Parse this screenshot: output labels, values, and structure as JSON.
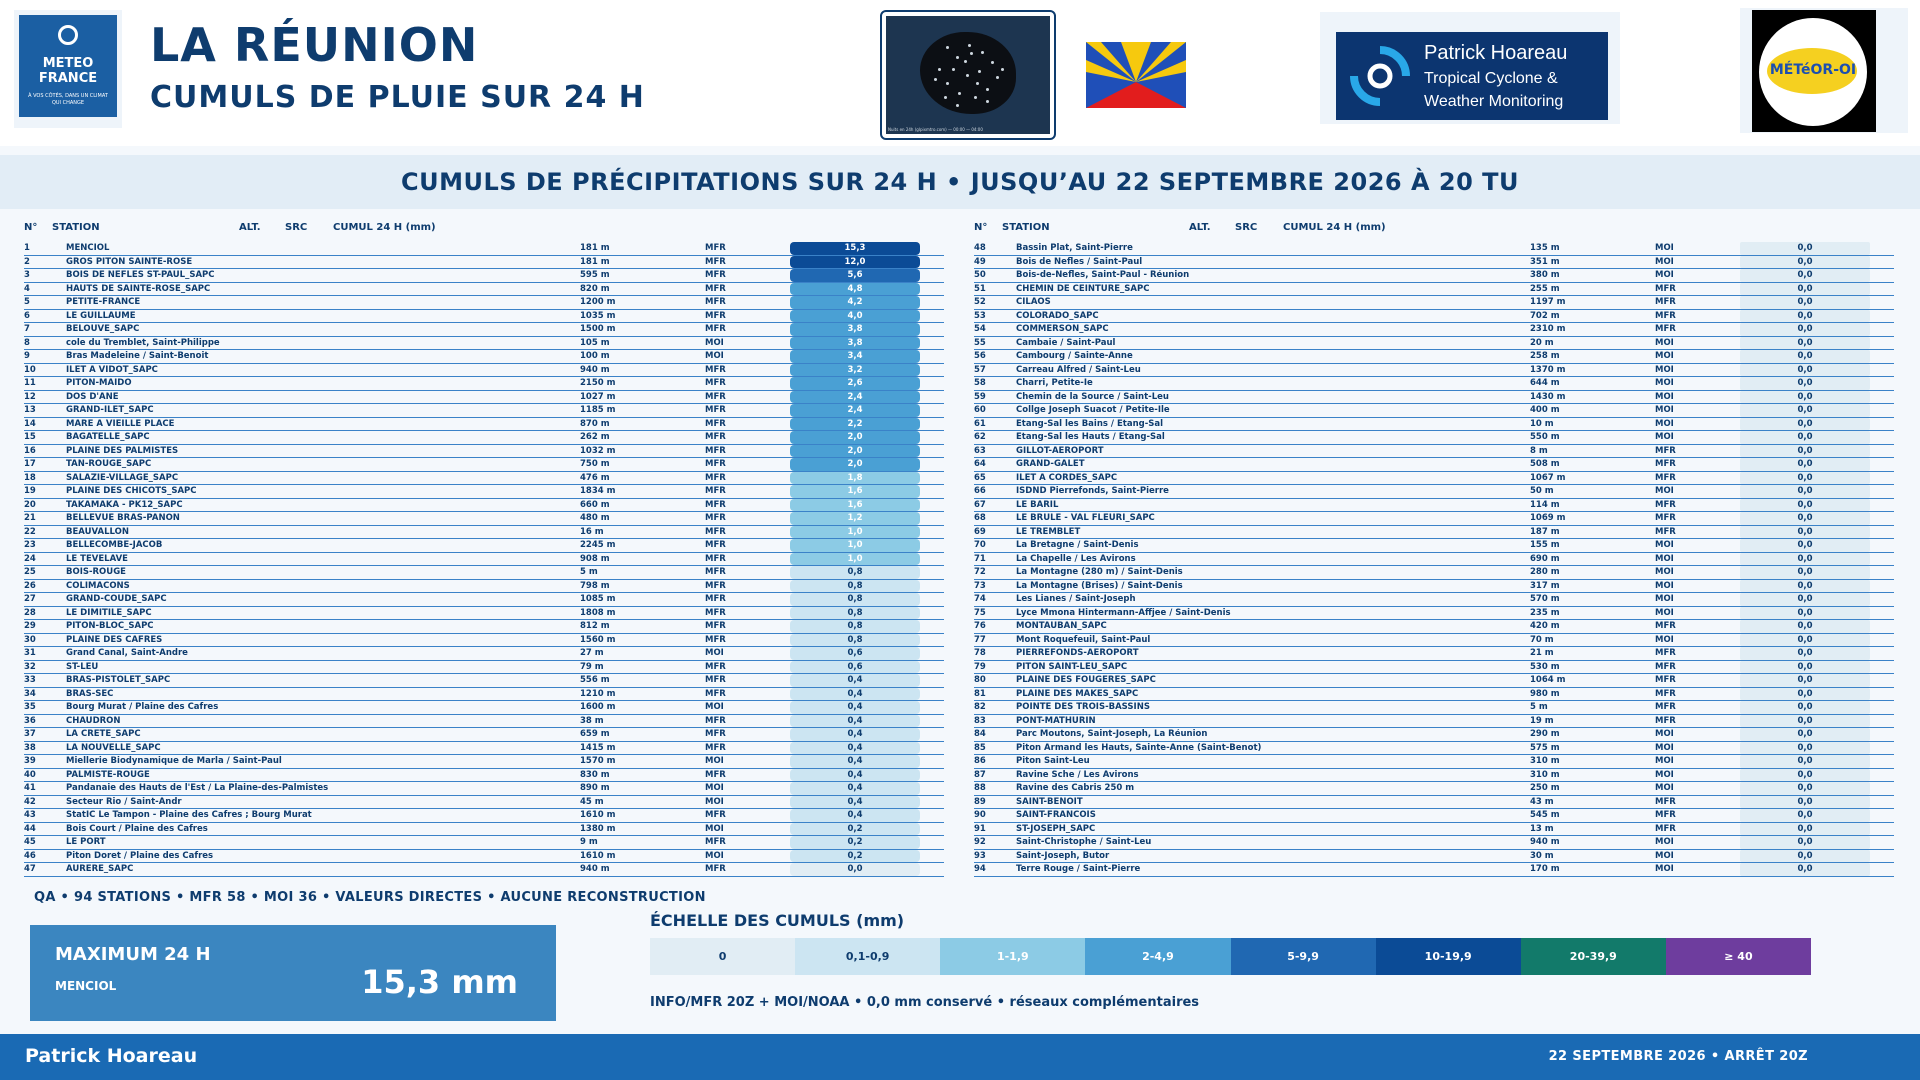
{
  "header": {
    "title": "LA RÉUNION",
    "subtitle": "CUMULS DE PLUIE SUR 24 H",
    "mf_logo_line1": "METEO",
    "mf_logo_line2": "FRANCE",
    "mf_logo_tagline": "À VOS CÔTÉS, DANS UN CLIMAT QUI CHANGE",
    "sat_caption": "Nuits en 24h (glpixmtro.com) — 00:00 — 04:00",
    "ph_name": "Patrick Hoareau",
    "ph_sub1": "Tropical Cyclone &",
    "ph_sub2": "Weather Monitoring",
    "meteor_logo": "MÉTéOR-OI",
    "mf_logo_icon": "meteo-france-logo",
    "flag_icon": "reunion-flag",
    "sat_icon": "satellite-map"
  },
  "banner": "CUMULS DE PRÉCIPITATIONS SUR 24 H • JUSQU’AU 22 SEPTEMBRE 2026 À 20 TU",
  "columns": {
    "n": "N°",
    "station": "STATION",
    "alt": "ALT.",
    "src": "SRC",
    "cumul": "CUMUL 24 H (mm)"
  },
  "colors": {
    "c0": "#e1edf4",
    "c01": "#cce5f2",
    "c1": "#8ccbe5",
    "c2": "#4aa0d4",
    "c5": "#2068b2",
    "c10": "#0b4b96",
    "c20": "#127a6a",
    "c40": "#6e3d9e"
  },
  "stations_left": [
    {
      "n": "1",
      "name": "MENCIOL",
      "alt": "181 m",
      "src": "MFR",
      "val": "15,3",
      "cls": "c10"
    },
    {
      "n": "2",
      "name": "GROS PITON SAINTE-ROSE",
      "alt": "181 m",
      "src": "MFR",
      "val": "12,0",
      "cls": "c10"
    },
    {
      "n": "3",
      "name": "BOIS DE NEFLES ST-PAUL_SAPC",
      "alt": "595 m",
      "src": "MFR",
      "val": "5,6",
      "cls": "c5"
    },
    {
      "n": "4",
      "name": "HAUTS DE SAINTE-ROSE_SAPC",
      "alt": "820 m",
      "src": "MFR",
      "val": "4,8",
      "cls": "c2"
    },
    {
      "n": "5",
      "name": "PETITE-FRANCE",
      "alt": "1200 m",
      "src": "MFR",
      "val": "4,2",
      "cls": "c2"
    },
    {
      "n": "6",
      "name": "LE GUILLAUME",
      "alt": "1035 m",
      "src": "MFR",
      "val": "4,0",
      "cls": "c2"
    },
    {
      "n": "7",
      "name": "BELOUVE_SAPC",
      "alt": "1500 m",
      "src": "MFR",
      "val": "3,8",
      "cls": "c2"
    },
    {
      "n": "8",
      "name": "cole du Tremblet, Saint-Philippe",
      "alt": "105 m",
      "src": "MOI",
      "val": "3,8",
      "cls": "c2"
    },
    {
      "n": "9",
      "name": "Bras Madeleine / Saint-Benoit",
      "alt": "100 m",
      "src": "MOI",
      "val": "3,4",
      "cls": "c2"
    },
    {
      "n": "10",
      "name": "ILET A VIDOT_SAPC",
      "alt": "940 m",
      "src": "MFR",
      "val": "3,2",
      "cls": "c2"
    },
    {
      "n": "11",
      "name": "PITON-MAIDO",
      "alt": "2150 m",
      "src": "MFR",
      "val": "2,6",
      "cls": "c2"
    },
    {
      "n": "12",
      "name": "DOS D'ANE",
      "alt": "1027 m",
      "src": "MFR",
      "val": "2,4",
      "cls": "c2"
    },
    {
      "n": "13",
      "name": "GRAND-ILET_SAPC",
      "alt": "1185 m",
      "src": "MFR",
      "val": "2,4",
      "cls": "c2"
    },
    {
      "n": "14",
      "name": "MARE A VIEILLE PLACE",
      "alt": "870 m",
      "src": "MFR",
      "val": "2,2",
      "cls": "c2"
    },
    {
      "n": "15",
      "name": "BAGATELLE_SAPC",
      "alt": "262 m",
      "src": "MFR",
      "val": "2,0",
      "cls": "c2"
    },
    {
      "n": "16",
      "name": "PLAINE DES PALMISTES",
      "alt": "1032 m",
      "src": "MFR",
      "val": "2,0",
      "cls": "c2"
    },
    {
      "n": "17",
      "name": "TAN-ROUGE_SAPC",
      "alt": "750 m",
      "src": "MFR",
      "val": "2,0",
      "cls": "c2"
    },
    {
      "n": "18",
      "name": "SALAZIE-VILLAGE_SAPC",
      "alt": "476 m",
      "src": "MFR",
      "val": "1,8",
      "cls": "c1"
    },
    {
      "n": "19",
      "name": "PLAINE DES CHICOTS_SAPC",
      "alt": "1834 m",
      "src": "MFR",
      "val": "1,6",
      "cls": "c1"
    },
    {
      "n": "20",
      "name": "TAKAMAKA - PK12_SAPC",
      "alt": "660 m",
      "src": "MFR",
      "val": "1,6",
      "cls": "c1"
    },
    {
      "n": "21",
      "name": "BELLEVUE BRAS-PANON",
      "alt": "480 m",
      "src": "MFR",
      "val": "1,2",
      "cls": "c1"
    },
    {
      "n": "22",
      "name": "BEAUVALLON",
      "alt": "16 m",
      "src": "MFR",
      "val": "1,0",
      "cls": "c1"
    },
    {
      "n": "23",
      "name": "BELLECOMBE-JACOB",
      "alt": "2245 m",
      "src": "MFR",
      "val": "1,0",
      "cls": "c1"
    },
    {
      "n": "24",
      "name": "LE TEVELAVE",
      "alt": "908 m",
      "src": "MFR",
      "val": "1,0",
      "cls": "c1"
    },
    {
      "n": "25",
      "name": "BOIS-ROUGE",
      "alt": "5 m",
      "src": "MFR",
      "val": "0,8",
      "cls": "c01"
    },
    {
      "n": "26",
      "name": "COLIMACONS",
      "alt": "798 m",
      "src": "MFR",
      "val": "0,8",
      "cls": "c01"
    },
    {
      "n": "27",
      "name": "GRAND-COUDE_SAPC",
      "alt": "1085 m",
      "src": "MFR",
      "val": "0,8",
      "cls": "c01"
    },
    {
      "n": "28",
      "name": "LE DIMITILE_SAPC",
      "alt": "1808 m",
      "src": "MFR",
      "val": "0,8",
      "cls": "c01"
    },
    {
      "n": "29",
      "name": "PITON-BLOC_SAPC",
      "alt": "812 m",
      "src": "MFR",
      "val": "0,8",
      "cls": "c01"
    },
    {
      "n": "30",
      "name": "PLAINE DES CAFRES",
      "alt": "1560 m",
      "src": "MFR",
      "val": "0,8",
      "cls": "c01"
    },
    {
      "n": "31",
      "name": "Grand Canal, Saint-Andre",
      "alt": "27 m",
      "src": "MOI",
      "val": "0,6",
      "cls": "c01"
    },
    {
      "n": "32",
      "name": "ST-LEU",
      "alt": "79 m",
      "src": "MFR",
      "val": "0,6",
      "cls": "c01"
    },
    {
      "n": "33",
      "name": "BRAS-PISTOLET_SAPC",
      "alt": "556 m",
      "src": "MFR",
      "val": "0,4",
      "cls": "c01"
    },
    {
      "n": "34",
      "name": "BRAS-SEC",
      "alt": "1210 m",
      "src": "MFR",
      "val": "0,4",
      "cls": "c01"
    },
    {
      "n": "35",
      "name": "Bourg Murat / Plaine des Cafres",
      "alt": "1600 m",
      "src": "MOI",
      "val": "0,4",
      "cls": "c01"
    },
    {
      "n": "36",
      "name": "CHAUDRON",
      "alt": "38 m",
      "src": "MFR",
      "val": "0,4",
      "cls": "c01"
    },
    {
      "n": "37",
      "name": "LA CRETE_SAPC",
      "alt": "659 m",
      "src": "MFR",
      "val": "0,4",
      "cls": "c01"
    },
    {
      "n": "38",
      "name": "LA NOUVELLE_SAPC",
      "alt": "1415 m",
      "src": "MFR",
      "val": "0,4",
      "cls": "c01"
    },
    {
      "n": "39",
      "name": "Miellerie Biodynamique de Marla / Saint-Paul",
      "alt": "1570 m",
      "src": "MOI",
      "val": "0,4",
      "cls": "c01"
    },
    {
      "n": "40",
      "name": "PALMISTE-ROUGE",
      "alt": "830 m",
      "src": "MFR",
      "val": "0,4",
      "cls": "c01"
    },
    {
      "n": "41",
      "name": "Pandanaie des Hauts de l'Est / La Plaine-des-Palmistes",
      "alt": "890 m",
      "src": "MOI",
      "val": "0,4",
      "cls": "c01"
    },
    {
      "n": "42",
      "name": "Secteur Rio / Saint-Andr",
      "alt": "45 m",
      "src": "MOI",
      "val": "0,4",
      "cls": "c01"
    },
    {
      "n": "43",
      "name": "StatIC Le Tampon - Plaine des Cafres ; Bourg Murat",
      "alt": "1610 m",
      "src": "MFR",
      "val": "0,4",
      "cls": "c01"
    },
    {
      "n": "44",
      "name": "Bois Court / Plaine des Cafres",
      "alt": "1380 m",
      "src": "MOI",
      "val": "0,2",
      "cls": "c01"
    },
    {
      "n": "45",
      "name": "LE PORT",
      "alt": "9 m",
      "src": "MFR",
      "val": "0,2",
      "cls": "c01"
    },
    {
      "n": "46",
      "name": "Piton Doret / Plaine des Cafres",
      "alt": "1610 m",
      "src": "MOI",
      "val": "0,2",
      "cls": "c01"
    },
    {
      "n": "47",
      "name": "AURERE_SAPC",
      "alt": "940 m",
      "src": "MFR",
      "val": "0,0",
      "cls": "c0"
    }
  ],
  "stations_right": [
    {
      "n": "48",
      "name": "Bassin Plat, Saint-Pierre",
      "alt": "135 m",
      "src": "MOI",
      "val": "0,0",
      "cls": "c0"
    },
    {
      "n": "49",
      "name": "Bois de Nefles / Saint-Paul",
      "alt": "351 m",
      "src": "MOI",
      "val": "0,0",
      "cls": "c0"
    },
    {
      "n": "50",
      "name": "Bois-de-Nefles, Saint-Paul - Réunion",
      "alt": "380 m",
      "src": "MOI",
      "val": "0,0",
      "cls": "c0"
    },
    {
      "n": "51",
      "name": "CHEMIN DE CEINTURE_SAPC",
      "alt": "255 m",
      "src": "MFR",
      "val": "0,0",
      "cls": "c0"
    },
    {
      "n": "52",
      "name": "CILAOS",
      "alt": "1197 m",
      "src": "MFR",
      "val": "0,0",
      "cls": "c0"
    },
    {
      "n": "53",
      "name": "COLORADO_SAPC",
      "alt": "702 m",
      "src": "MFR",
      "val": "0,0",
      "cls": "c0"
    },
    {
      "n": "54",
      "name": "COMMERSON_SAPC",
      "alt": "2310 m",
      "src": "MFR",
      "val": "0,0",
      "cls": "c0"
    },
    {
      "n": "55",
      "name": "Cambaie / Saint-Paul",
      "alt": "20 m",
      "src": "MOI",
      "val": "0,0",
      "cls": "c0"
    },
    {
      "n": "56",
      "name": "Cambourg / Sainte-Anne",
      "alt": "258 m",
      "src": "MOI",
      "val": "0,0",
      "cls": "c0"
    },
    {
      "n": "57",
      "name": "Carreau Alfred / Saint-Leu",
      "alt": "1370 m",
      "src": "MOI",
      "val": "0,0",
      "cls": "c0"
    },
    {
      "n": "58",
      "name": "Charri, Petite-Ie",
      "alt": "644 m",
      "src": "MOI",
      "val": "0,0",
      "cls": "c0"
    },
    {
      "n": "59",
      "name": "Chemin de la Source / Saint-Leu",
      "alt": "1430 m",
      "src": "MOI",
      "val": "0,0",
      "cls": "c0"
    },
    {
      "n": "60",
      "name": "Collge Joseph Suacot / Petite-Ile",
      "alt": "400 m",
      "src": "MOI",
      "val": "0,0",
      "cls": "c0"
    },
    {
      "n": "61",
      "name": "Etang-Sal les Bains / Etang-Sal",
      "alt": "10 m",
      "src": "MOI",
      "val": "0,0",
      "cls": "c0"
    },
    {
      "n": "62",
      "name": "Etang-Sal les Hauts / Etang-Sal",
      "alt": "550 m",
      "src": "MOI",
      "val": "0,0",
      "cls": "c0"
    },
    {
      "n": "63",
      "name": "GILLOT-AEROPORT",
      "alt": "8 m",
      "src": "MFR",
      "val": "0,0",
      "cls": "c0"
    },
    {
      "n": "64",
      "name": "GRAND-GALET",
      "alt": "508 m",
      "src": "MFR",
      "val": "0,0",
      "cls": "c0"
    },
    {
      "n": "65",
      "name": "ILET A CORDES_SAPC",
      "alt": "1067 m",
      "src": "MFR",
      "val": "0,0",
      "cls": "c0"
    },
    {
      "n": "66",
      "name": "ISDND Pierrefonds, Saint-Pierre",
      "alt": "50 m",
      "src": "MOI",
      "val": "0,0",
      "cls": "c0"
    },
    {
      "n": "67",
      "name": "LE BARIL",
      "alt": "114 m",
      "src": "MFR",
      "val": "0,0",
      "cls": "c0"
    },
    {
      "n": "68",
      "name": "LE BRULE - VAL FLEURI_SAPC",
      "alt": "1069 m",
      "src": "MFR",
      "val": "0,0",
      "cls": "c0"
    },
    {
      "n": "69",
      "name": "LE TREMBLET",
      "alt": "187 m",
      "src": "MFR",
      "val": "0,0",
      "cls": "c0"
    },
    {
      "n": "70",
      "name": "La Bretagne / Saint-Denis",
      "alt": "155 m",
      "src": "MOI",
      "val": "0,0",
      "cls": "c0"
    },
    {
      "n": "71",
      "name": "La Chapelle / Les Avirons",
      "alt": "690 m",
      "src": "MOI",
      "val": "0,0",
      "cls": "c0"
    },
    {
      "n": "72",
      "name": "La Montagne (280 m) / Saint-Denis",
      "alt": "280 m",
      "src": "MOI",
      "val": "0,0",
      "cls": "c0"
    },
    {
      "n": "73",
      "name": "La Montagne (Brises) / Saint-Denis",
      "alt": "317 m",
      "src": "MOI",
      "val": "0,0",
      "cls": "c0"
    },
    {
      "n": "74",
      "name": "Les Lianes / Saint-Joseph",
      "alt": "570 m",
      "src": "MOI",
      "val": "0,0",
      "cls": "c0"
    },
    {
      "n": "75",
      "name": "Lyce Mmona Hintermann-Affjee / Saint-Denis",
      "alt": "235 m",
      "src": "MOI",
      "val": "0,0",
      "cls": "c0"
    },
    {
      "n": "76",
      "name": "MONTAUBAN_SAPC",
      "alt": "420 m",
      "src": "MFR",
      "val": "0,0",
      "cls": "c0"
    },
    {
      "n": "77",
      "name": "Mont Roquefeuil, Saint-Paul",
      "alt": "70 m",
      "src": "MOI",
      "val": "0,0",
      "cls": "c0"
    },
    {
      "n": "78",
      "name": "PIERREFONDS-AEROPORT",
      "alt": "21 m",
      "src": "MFR",
      "val": "0,0",
      "cls": "c0"
    },
    {
      "n": "79",
      "name": "PITON SAINT-LEU_SAPC",
      "alt": "530 m",
      "src": "MFR",
      "val": "0,0",
      "cls": "c0"
    },
    {
      "n": "80",
      "name": "PLAINE DES FOUGERES_SAPC",
      "alt": "1064 m",
      "src": "MFR",
      "val": "0,0",
      "cls": "c0"
    },
    {
      "n": "81",
      "name": "PLAINE DES MAKES_SAPC",
      "alt": "980 m",
      "src": "MFR",
      "val": "0,0",
      "cls": "c0"
    },
    {
      "n": "82",
      "name": "POINTE DES TROIS-BASSINS",
      "alt": "5 m",
      "src": "MFR",
      "val": "0,0",
      "cls": "c0"
    },
    {
      "n": "83",
      "name": "PONT-MATHURIN",
      "alt": "19 m",
      "src": "MFR",
      "val": "0,0",
      "cls": "c0"
    },
    {
      "n": "84",
      "name": "Parc  Moutons, Saint-Joseph, La Réunion",
      "alt": "290 m",
      "src": "MOI",
      "val": "0,0",
      "cls": "c0"
    },
    {
      "n": "85",
      "name": "Piton Armand les Hauts, Sainte-Anne (Saint-Benot)",
      "alt": "575 m",
      "src": "MOI",
      "val": "0,0",
      "cls": "c0"
    },
    {
      "n": "86",
      "name": "Piton Saint-Leu",
      "alt": "310 m",
      "src": "MOI",
      "val": "0,0",
      "cls": "c0"
    },
    {
      "n": "87",
      "name": "Ravine Sche / Les Avirons",
      "alt": "310 m",
      "src": "MOI",
      "val": "0,0",
      "cls": "c0"
    },
    {
      "n": "88",
      "name": "Ravine des Cabris 250 m",
      "alt": "250 m",
      "src": "MOI",
      "val": "0,0",
      "cls": "c0"
    },
    {
      "n": "89",
      "name": "SAINT-BENOIT",
      "alt": "43 m",
      "src": "MFR",
      "val": "0,0",
      "cls": "c0"
    },
    {
      "n": "90",
      "name": "SAINT-FRANCOIS",
      "alt": "545 m",
      "src": "MFR",
      "val": "0,0",
      "cls": "c0"
    },
    {
      "n": "91",
      "name": "ST-JOSEPH_SAPC",
      "alt": "13 m",
      "src": "MFR",
      "val": "0,0",
      "cls": "c0"
    },
    {
      "n": "92",
      "name": "Saint-Christophe / Saint-Leu",
      "alt": "940 m",
      "src": "MOI",
      "val": "0,0",
      "cls": "c0"
    },
    {
      "n": "93",
      "name": "Saint-Joseph, Butor",
      "alt": "30 m",
      "src": "MOI",
      "val": "0,0",
      "cls": "c0"
    },
    {
      "n": "94",
      "name": "Terre Rouge / Saint-Pierre",
      "alt": "170 m",
      "src": "MOI",
      "val": "0,0",
      "cls": "c0"
    }
  ],
  "qa_line": "QA • 94 STATIONS • MFR 58 • MOI 36 • VALEURS DIRECTES • AUCUNE RECONSTRUCTION",
  "max": {
    "label": "MAXIMUM 24 H",
    "station": "MENCIOL",
    "value": "15,3 mm"
  },
  "scale": {
    "title": "ÉCHELLE DES CUMULS (mm)",
    "items": [
      {
        "label": "0",
        "bg": "#e1edf4",
        "fg": "#0e3c6e"
      },
      {
        "label": "0,1-0,9",
        "bg": "#cce5f2",
        "fg": "#0e3c6e"
      },
      {
        "label": "1-1,9",
        "bg": "#8ccbe5",
        "fg": "#ffffff"
      },
      {
        "label": "2-4,9",
        "bg": "#4aa0d4",
        "fg": "#ffffff"
      },
      {
        "label": "5-9,9",
        "bg": "#2068b2",
        "fg": "#ffffff"
      },
      {
        "label": "10-19,9",
        "bg": "#0b4b96",
        "fg": "#ffffff"
      },
      {
        "label": "20-39,9",
        "bg": "#127a6a",
        "fg": "#ffffff"
      },
      {
        "label": "≥ 40",
        "bg": "#6e3d9e",
        "fg": "#ffffff"
      }
    ]
  },
  "footer_note": "INFO/MFR 20Z + MOI/NOAA • 0,0 mm conservé • réseaux complémentaires",
  "bottom": {
    "name": "Patrick Hoareau",
    "date": "22 SEPTEMBRE 2026 • ARRÊT 20Z"
  }
}
